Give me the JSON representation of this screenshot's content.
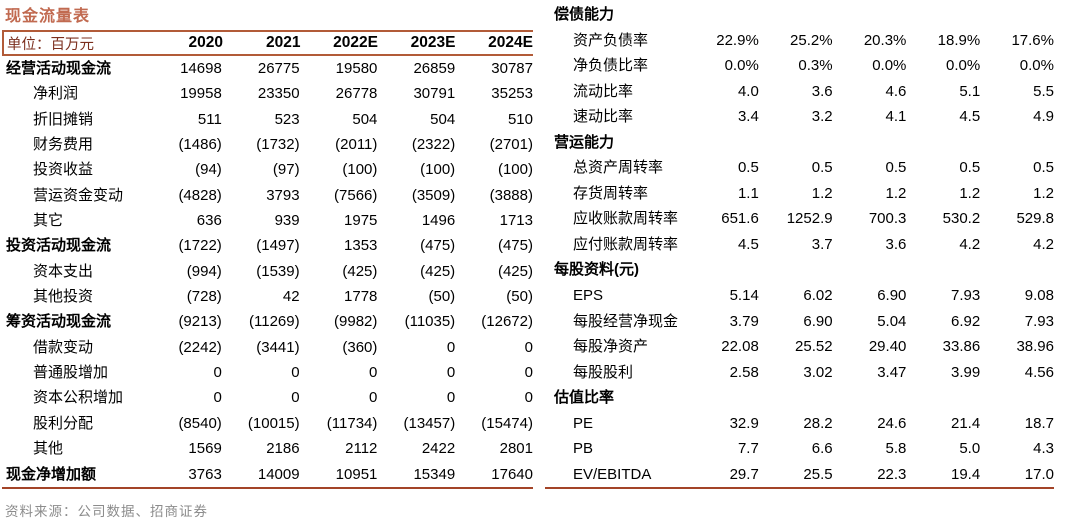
{
  "title": "现金流量表",
  "source_note": "资料来源：公司数据、招商证券",
  "colors": {
    "title_accent": "#C16A50",
    "header_border": "#B25B38",
    "bottom_rule": "#A34428",
    "unit_text": "#7C2F1E",
    "source_text": "#8C8C8C"
  },
  "left_table": {
    "unit_label": "单位：百万元",
    "years": [
      "2020",
      "2021",
      "2022E",
      "2023E",
      "2024E"
    ],
    "rows": [
      {
        "label": "经营活动现金流",
        "bold": true,
        "values": [
          "14698",
          "26775",
          "19580",
          "26859",
          "30787"
        ]
      },
      {
        "label": "净利润",
        "bold": false,
        "values": [
          "19958",
          "23350",
          "26778",
          "30791",
          "35253"
        ]
      },
      {
        "label": "折旧摊销",
        "bold": false,
        "values": [
          "511",
          "523",
          "504",
          "504",
          "510"
        ]
      },
      {
        "label": "财务费用",
        "bold": false,
        "values": [
          "(1486)",
          "(1732)",
          "(2011)",
          "(2322)",
          "(2701)"
        ]
      },
      {
        "label": "投资收益",
        "bold": false,
        "values": [
          "(94)",
          "(97)",
          "(100)",
          "(100)",
          "(100)"
        ]
      },
      {
        "label": "营运资金变动",
        "bold": false,
        "values": [
          "(4828)",
          "3793",
          "(7566)",
          "(3509)",
          "(3888)"
        ]
      },
      {
        "label": "其它",
        "bold": false,
        "values": [
          "636",
          "939",
          "1975",
          "1496",
          "1713"
        ]
      },
      {
        "label": "投资活动现金流",
        "bold": true,
        "values": [
          "(1722)",
          "(1497)",
          "1353",
          "(475)",
          "(475)"
        ]
      },
      {
        "label": "资本支出",
        "bold": false,
        "values": [
          "(994)",
          "(1539)",
          "(425)",
          "(425)",
          "(425)"
        ]
      },
      {
        "label": "其他投资",
        "bold": false,
        "values": [
          "(728)",
          "42",
          "1778",
          "(50)",
          "(50)"
        ]
      },
      {
        "label": "筹资活动现金流",
        "bold": true,
        "values": [
          "(9213)",
          "(11269)",
          "(9982)",
          "(11035)",
          "(12672)"
        ]
      },
      {
        "label": "借款变动",
        "bold": false,
        "values": [
          "(2242)",
          "(3441)",
          "(360)",
          "0",
          "0"
        ]
      },
      {
        "label": "普通股增加",
        "bold": false,
        "values": [
          "0",
          "0",
          "0",
          "0",
          "0"
        ]
      },
      {
        "label": "资本公积增加",
        "bold": false,
        "values": [
          "0",
          "0",
          "0",
          "0",
          "0"
        ]
      },
      {
        "label": "股利分配",
        "bold": false,
        "values": [
          "(8540)",
          "(10015)",
          "(11734)",
          "(13457)",
          "(15474)"
        ]
      },
      {
        "label": "其他",
        "bold": false,
        "values": [
          "1569",
          "2186",
          "2112",
          "2422",
          "2801"
        ]
      },
      {
        "label": "现金净增加额",
        "bold": true,
        "values": [
          "3763",
          "14009",
          "10951",
          "15349",
          "17640"
        ]
      }
    ]
  },
  "right_table": {
    "rows": [
      {
        "label": "偿债能力",
        "bold": true,
        "values": [
          "",
          "",
          "",
          "",
          ""
        ]
      },
      {
        "label": "资产负债率",
        "bold": false,
        "values": [
          "22.9%",
          "25.2%",
          "20.3%",
          "18.9%",
          "17.6%"
        ]
      },
      {
        "label": "净负债比率",
        "bold": false,
        "values": [
          "0.0%",
          "0.3%",
          "0.0%",
          "0.0%",
          "0.0%"
        ]
      },
      {
        "label": "流动比率",
        "bold": false,
        "values": [
          "4.0",
          "3.6",
          "4.6",
          "5.1",
          "5.5"
        ]
      },
      {
        "label": "速动比率",
        "bold": false,
        "values": [
          "3.4",
          "3.2",
          "4.1",
          "4.5",
          "4.9"
        ]
      },
      {
        "label": "营运能力",
        "bold": true,
        "values": [
          "",
          "",
          "",
          "",
          ""
        ]
      },
      {
        "label": "总资产周转率",
        "bold": false,
        "values": [
          "0.5",
          "0.5",
          "0.5",
          "0.5",
          "0.5"
        ]
      },
      {
        "label": "存货周转率",
        "bold": false,
        "values": [
          "1.1",
          "1.2",
          "1.2",
          "1.2",
          "1.2"
        ]
      },
      {
        "label": "应收账款周转率",
        "bold": false,
        "values": [
          "651.6",
          "1252.9",
          "700.3",
          "530.2",
          "529.8"
        ]
      },
      {
        "label": "应付账款周转率",
        "bold": false,
        "values": [
          "4.5",
          "3.7",
          "3.6",
          "4.2",
          "4.2"
        ]
      },
      {
        "label": "每股资料(元)",
        "bold": true,
        "values": [
          "",
          "",
          "",
          "",
          ""
        ]
      },
      {
        "label": "EPS",
        "bold": false,
        "values": [
          "5.14",
          "6.02",
          "6.90",
          "7.93",
          "9.08"
        ]
      },
      {
        "label": "每股经营净现金",
        "bold": false,
        "values": [
          "3.79",
          "6.90",
          "5.04",
          "6.92",
          "7.93"
        ]
      },
      {
        "label": "每股净资产",
        "bold": false,
        "values": [
          "22.08",
          "25.52",
          "29.40",
          "33.86",
          "38.96"
        ]
      },
      {
        "label": "每股股利",
        "bold": false,
        "values": [
          "2.58",
          "3.02",
          "3.47",
          "3.99",
          "4.56"
        ]
      },
      {
        "label": "估值比率",
        "bold": true,
        "values": [
          "",
          "",
          "",
          "",
          ""
        ]
      },
      {
        "label": "PE",
        "bold": false,
        "values": [
          "32.9",
          "28.2",
          "24.6",
          "21.4",
          "18.7"
        ]
      },
      {
        "label": "PB",
        "bold": false,
        "values": [
          "7.7",
          "6.6",
          "5.8",
          "5.0",
          "4.3"
        ]
      },
      {
        "label": "EV/EBITDA",
        "bold": false,
        "values": [
          "29.7",
          "25.5",
          "22.3",
          "19.4",
          "17.0"
        ]
      }
    ]
  }
}
